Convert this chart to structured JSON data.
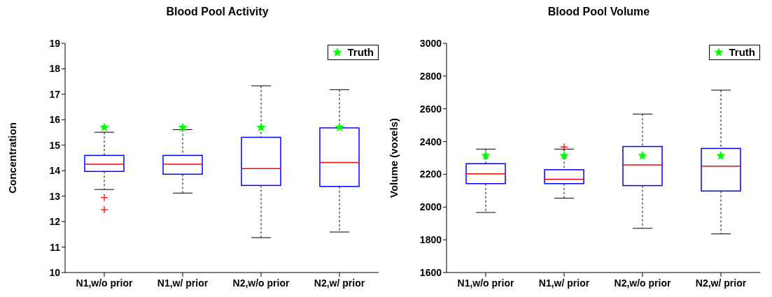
{
  "chart_data": [
    {
      "type": "box",
      "title": "Blood Pool Activity",
      "ylabel": "Concentration",
      "categories": [
        "N1,w/o prior",
        "N1,w/ prior",
        "N2,w/o prior",
        "N2,w/ prior"
      ],
      "color": "#0000ff",
      "boxes": [
        {
          "low": 13.26,
          "q1": 13.97,
          "median": 14.25,
          "q3": 14.6,
          "high": 15.51,
          "outliers": [
            12.94,
            12.47
          ]
        },
        {
          "low": 13.12,
          "q1": 13.86,
          "median": 14.25,
          "q3": 14.6,
          "high": 15.61
        },
        {
          "low": 11.37,
          "q1": 13.42,
          "median": 14.08,
          "q3": 15.31,
          "high": 17.33
        },
        {
          "low": 11.59,
          "q1": 13.38,
          "median": 14.32,
          "q3": 15.68,
          "high": 17.18
        }
      ],
      "series": [
        {
          "name": "Truth",
          "type": "scatter",
          "color": "#00ff00",
          "marker": "star",
          "values": [
            15.7,
            15.7,
            15.7,
            15.7
          ]
        }
      ],
      "ylim": [
        10,
        19
      ],
      "yticks": [
        10,
        11,
        12,
        13,
        14,
        15,
        16,
        17,
        18,
        19
      ],
      "legend": "top right"
    },
    {
      "type": "box",
      "title": "Blood Pool Volume",
      "ylabel": "Volume (voxels)",
      "categories": [
        "N1,w/o prior",
        "N1,w/ prior",
        "N2,w/o prior",
        "N2,w/ prior"
      ],
      "color": "#0000ff",
      "boxes": [
        {
          "low": 1967,
          "q1": 2143,
          "median": 2203,
          "q3": 2265,
          "high": 2354
        },
        {
          "low": 2054,
          "q1": 2143,
          "median": 2170,
          "q3": 2228,
          "high": 2354,
          "outliers": [
            2367
          ]
        },
        {
          "low": 1870,
          "q1": 2131,
          "median": 2257,
          "q3": 2370,
          "high": 2568
        },
        {
          "low": 1836,
          "q1": 2098,
          "median": 2250,
          "q3": 2358,
          "high": 2714
        }
      ],
      "series": [
        {
          "name": "Truth",
          "type": "scatter",
          "color": "#00ff00",
          "marker": "star",
          "values": [
            2314,
            2314,
            2314,
            2314
          ]
        }
      ],
      "ylim": [
        1600,
        3000
      ],
      "yticks": [
        1600,
        1800,
        2000,
        2200,
        2400,
        2600,
        2800,
        3000
      ],
      "legend": "top right"
    }
  ]
}
